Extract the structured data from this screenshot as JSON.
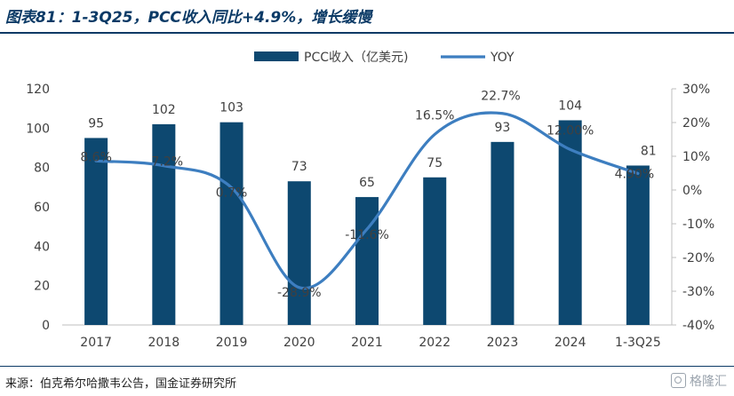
{
  "title": "图表81：1-3Q25，PCC收入同比+4.9%，增长缓慢",
  "source": "来源：伯克希尔哈撒韦公告，国金证券研究所",
  "watermark": "格隆汇",
  "chart_data": {
    "type": "bar",
    "categories": [
      "2017",
      "2018",
      "2019",
      "2020",
      "2021",
      "2022",
      "2023",
      "2024",
      "1-3Q25"
    ],
    "series": [
      {
        "name": "PCC收入（亿美元)",
        "type": "bar",
        "axis": "left",
        "values": [
          95,
          102,
          103,
          73,
          65,
          75,
          93,
          104,
          81
        ],
        "labels": [
          "95",
          "102",
          "103",
          "73",
          "65",
          "75",
          "93",
          "104",
          "81"
        ]
      },
      {
        "name": "YOY",
        "type": "line",
        "axis": "right",
        "values": [
          8.6,
          7.2,
          0.7,
          -28.9,
          -11.6,
          16.5,
          22.7,
          12.0,
          4.9
        ],
        "labels": [
          "8.6%",
          "7.2%",
          "0.7%",
          "-28.9%",
          "-11.6%",
          "16.5%",
          "22.7%",
          "12.00%",
          "4.90%"
        ]
      }
    ],
    "y_left": {
      "ylim": [
        0,
        120
      ],
      "ticks": [
        "0",
        "20",
        "40",
        "60",
        "80",
        "100",
        "120"
      ]
    },
    "y_right": {
      "ylim": [
        -40,
        30
      ],
      "ticks": [
        "-40%",
        "-30%",
        "-20%",
        "-10%",
        "0%",
        "10%",
        "20%",
        "30%"
      ]
    },
    "legend": {
      "position": "top-center"
    },
    "colors": {
      "bar": "#0d4870",
      "line": "#3d7ec0",
      "text": "#404040"
    },
    "grid": false
  }
}
